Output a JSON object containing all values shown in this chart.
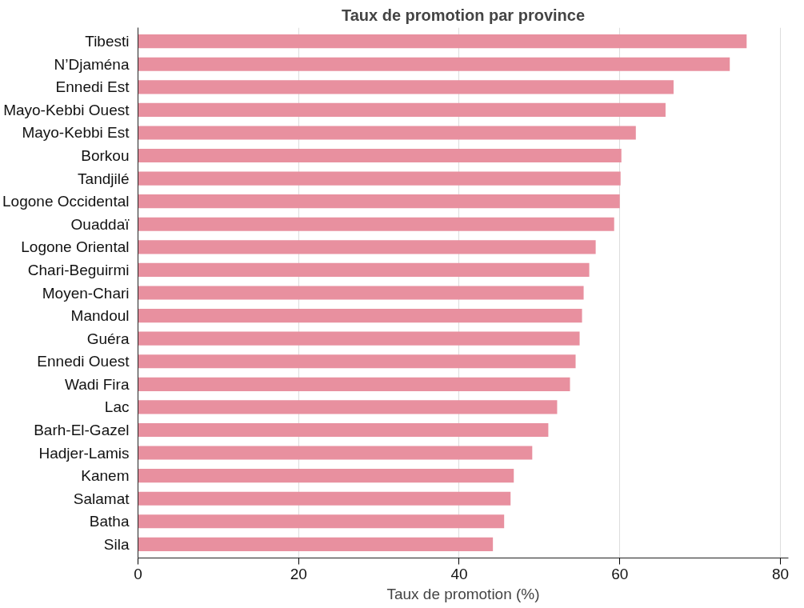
{
  "chart_data": {
    "type": "bar",
    "orientation": "horizontal",
    "title": "Taux de promotion par province",
    "xlabel": "Taux de promotion (%)",
    "categories": [
      "Tibesti",
      "N’Djaména",
      "Ennedi Est",
      "Mayo-Kebbi Ouest",
      "Mayo-Kebbi Est",
      "Borkou",
      "Tandjilé",
      "Logone Occidental",
      "Ouaddaï",
      "Logone Oriental",
      "Chari-Beguirmi",
      "Moyen-Chari",
      "Mandoul",
      "Guéra",
      "Ennedi Ouest",
      "Wadi Fira",
      "Lac",
      "Barh-El-Gazel",
      "Hadjer-Lamis",
      "Kanem",
      "Salamat",
      "Batha",
      "Sila"
    ],
    "values": [
      75.8,
      73.7,
      66.7,
      65.7,
      62.0,
      60.2,
      60.1,
      60.0,
      59.3,
      57.0,
      56.2,
      55.5,
      55.3,
      55.0,
      54.5,
      53.8,
      52.2,
      51.1,
      49.1,
      46.8,
      46.4,
      45.6,
      44.2
    ],
    "color": "#e8909f",
    "xlim": [
      0,
      81
    ],
    "xticks": [
      0,
      20,
      40,
      60,
      80
    ],
    "grid": "x"
  }
}
